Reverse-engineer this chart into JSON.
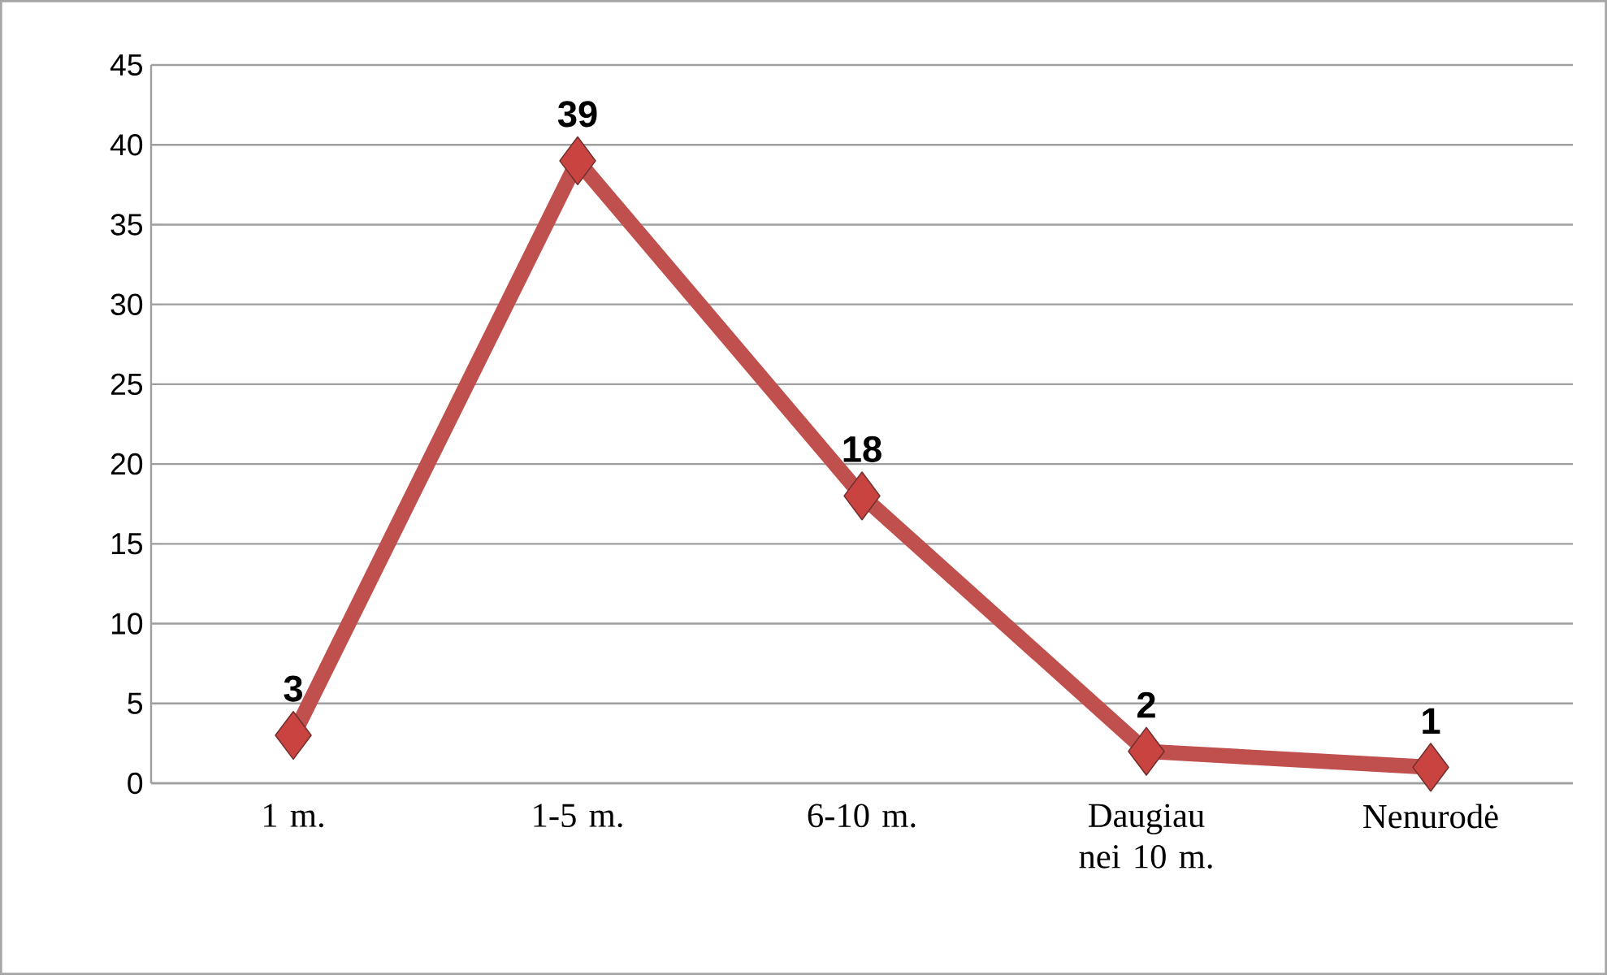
{
  "chart_data": {
    "type": "line",
    "categories": [
      "1 m.",
      "1-5 m.",
      "6-10 m.",
      "Daugiau nei 10 m.",
      "Nenurodė"
    ],
    "values": [
      3,
      39,
      18,
      2,
      1
    ],
    "color": "#c0504d",
    "ylim": [
      0,
      45
    ],
    "yticks": [
      0,
      5,
      10,
      15,
      20,
      25,
      30,
      35,
      40,
      45
    ],
    "grid": "y",
    "marker": "diamond",
    "line_style": "solid",
    "data_labels": true
  }
}
